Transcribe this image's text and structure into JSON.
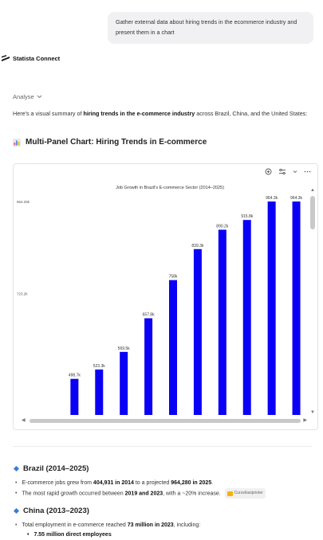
{
  "user_message": "Gather external data about hiring trends in the ecommerce industry and present them in a chart",
  "brand": {
    "name": "Statista Connect",
    "icon": "statista-logo-icon"
  },
  "analyse": {
    "label": "Analyse",
    "icon": "chevron-down-icon"
  },
  "intro": {
    "prefix": "Here's a visual summary of ",
    "bold": "hiring trends in the e-commerce industry",
    "suffix": " across Brazil, China, and the United States:"
  },
  "section_title": "Multi-Panel Chart: Hiring Trends in E-commerce",
  "toolbar_icons": [
    "settings-icon",
    "filter-icon",
    "chevron-down-icon",
    "more-icon"
  ],
  "chart_data": {
    "type": "bar",
    "title": "Job Growth in Brazil's E-commerce Sector (2014–2025)",
    "xlabel": "",
    "ylabel": "",
    "ylim": [
      404000,
      964280
    ],
    "yticks": [
      "964.28k",
      "723.2k"
    ],
    "ytick_values": [
      964280,
      723200
    ],
    "values": [
      404931,
      498700,
      523300,
      569500,
      657800,
      758000,
      839300,
      890200,
      915800,
      964300,
      964300
    ],
    "value_labels": [
      "",
      "498.7k",
      "523.3k",
      "569.5k",
      "657.8k",
      "758k",
      "839.3k",
      "890.2k",
      "915.8k",
      "964.3k",
      "964.3k"
    ],
    "color": "#0a00f5",
    "grid": false,
    "legend": "none"
  },
  "summary": {
    "brazil": {
      "heading": "Brazil (2014–2025)",
      "b1_pre": "E-commerce jobs grew from ",
      "b1_v1": "404,931 in 2014",
      "b1_mid": " to a projected ",
      "b1_v2": "964,280 in 2025",
      "b1_end": ".",
      "b2_pre": "The most rapid growth occurred between ",
      "b2_v": "2019 and 2023",
      "b2_end": ", with a ~20% increase.",
      "badge": "Curuvilasiprioter"
    },
    "china": {
      "heading": "China (2013–2023)",
      "b1_pre": "Total employment in e-commerce reached ",
      "b1_v": "73 million in 2023",
      "b1_end": ", including:",
      "sub1": "7.55 million direct employees"
    }
  }
}
